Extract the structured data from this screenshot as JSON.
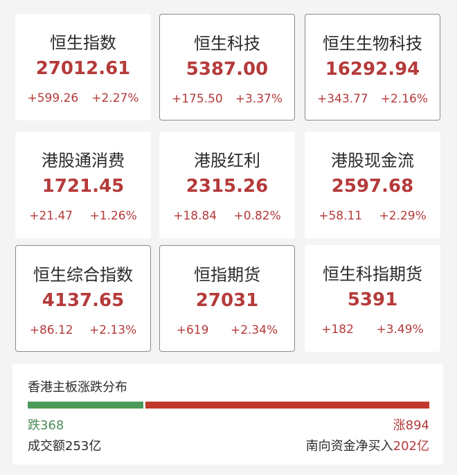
{
  "cards": [
    {
      "name": "恒生指数",
      "value": "27012.61",
      "change": "+599.26",
      "pct": "+2.27%",
      "selected": false
    },
    {
      "name": "恒生科技",
      "value": "5387.00",
      "change": "+175.50",
      "pct": "+3.37%",
      "selected": true
    },
    {
      "name": "恒生生物科技",
      "value": "16292.94",
      "change": "+343.77",
      "pct": "+2.16%",
      "selected": true
    },
    {
      "name": "港股通消费",
      "value": "1721.45",
      "change": "+21.47",
      "pct": "+1.26%",
      "selected": false
    },
    {
      "name": "港股红利",
      "value": "2315.26",
      "change": "+18.84",
      "pct": "+0.82%",
      "selected": false
    },
    {
      "name": "港股现金流",
      "value": "2597.68",
      "change": "+58.11",
      "pct": "+2.29%",
      "selected": false
    },
    {
      "name": "恒生综合指数",
      "value": "4137.65",
      "change": "+86.12",
      "pct": "+2.13%",
      "selected": true
    },
    {
      "name": "恒指期货",
      "value": "27031",
      "change": "+619",
      "pct": "+2.34%",
      "selected": true
    },
    {
      "name": "恒生科指期货",
      "value": "5391",
      "change": "+182",
      "pct": "+3.49%",
      "selected": false
    }
  ],
  "breadth": {
    "title": "香港主板涨跌分布",
    "down_label": "跌368",
    "down": 368,
    "up_label": "涨894",
    "up": 894,
    "turnover": "成交额253亿",
    "southbound_label": "南向资金净买入",
    "southbound_value": "202亿",
    "colors": {
      "up": "#c0392b",
      "down": "#4c9a58"
    }
  }
}
